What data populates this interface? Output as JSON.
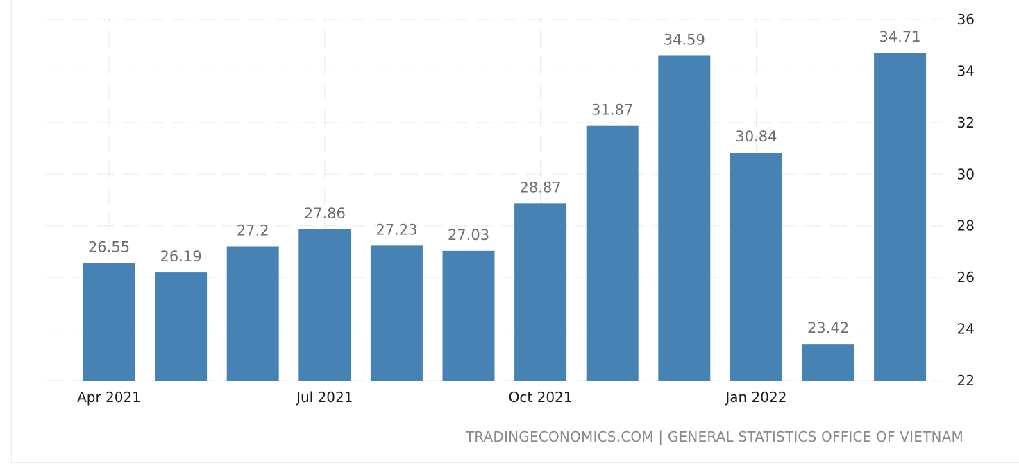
{
  "chart_data": {
    "type": "bar",
    "categories": [
      "Apr 2021",
      "May 2021",
      "Jun 2021",
      "Jul 2021",
      "Aug 2021",
      "Sep 2021",
      "Oct 2021",
      "Nov 2021",
      "Dec 2021",
      "Jan 2022",
      "Feb 2022",
      "Mar 2022"
    ],
    "values": [
      26.55,
      26.19,
      27.2,
      27.86,
      27.23,
      27.03,
      28.87,
      31.87,
      34.59,
      30.84,
      23.42,
      34.71
    ],
    "data_labels": [
      "26.55",
      "26.19",
      "27.2",
      "27.86",
      "27.23",
      "27.03",
      "28.87",
      "31.87",
      "34.59",
      "30.84",
      "23.42",
      "34.71"
    ],
    "x_tick_labels": [
      {
        "category": "Apr 2021",
        "label": "Apr 2021"
      },
      {
        "category": "Jul 2021",
        "label": "Jul 2021"
      },
      {
        "category": "Oct 2021",
        "label": "Oct 2021"
      },
      {
        "category": "Jan 2022",
        "label": "Jan 2022"
      }
    ],
    "y_ticks": [
      22,
      24,
      26,
      28,
      30,
      32,
      34,
      36
    ],
    "ylim": [
      22,
      36
    ],
    "y_axis_position": "right",
    "grid": true,
    "bar_color": "#4682b4",
    "label_color": "#6e6e6e",
    "title": "",
    "xlabel": "",
    "ylabel": ""
  },
  "source": "TRADINGECONOMICS.COM | GENERAL STATISTICS OFFICE OF VIETNAM"
}
